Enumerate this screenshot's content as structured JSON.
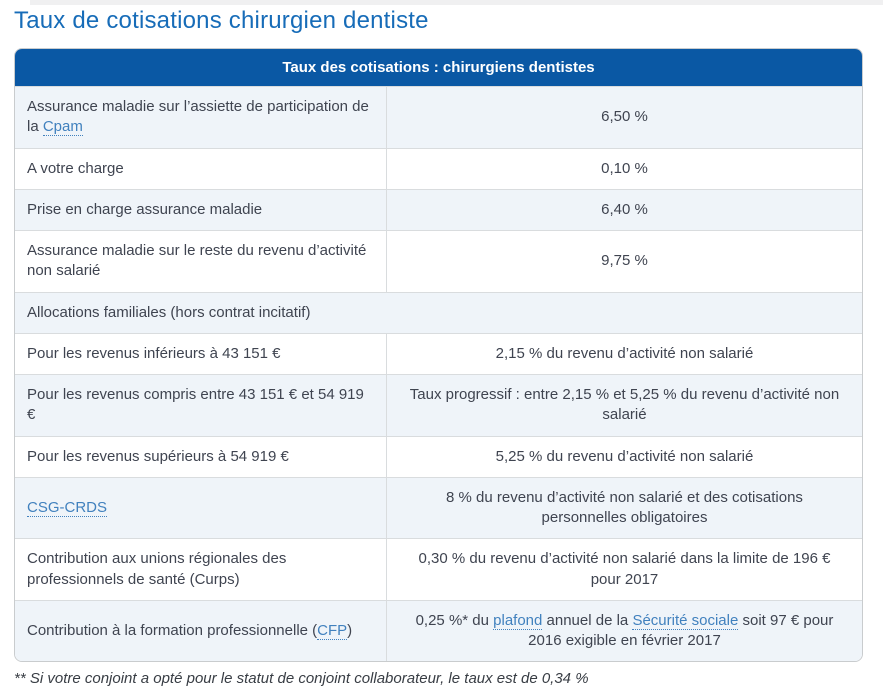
{
  "page": {
    "title": "Taux de cotisations chirurgien dentiste",
    "footnote": "** Si votre conjoint a opté pour le statut de conjoint collaborateur, le taux est de 0,34 %"
  },
  "colors": {
    "title_blue": "#176cb8",
    "header_bg": "#0a58a4",
    "link_blue": "#4181be",
    "row_alt_bg": "#eff4f9",
    "border": "#d9dcde",
    "text": "#3f4450"
  },
  "table": {
    "header": "Taux des cotisations : chirurgiens dentistes",
    "rows": [
      {
        "label": [
          {
            "t": "Assurance maladie sur l’assiette de participation de la "
          },
          {
            "t": "Cpam",
            "link": true
          }
        ],
        "value": [
          {
            "t": "6,50 %"
          }
        ]
      },
      {
        "label": [
          {
            "t": "A votre charge"
          }
        ],
        "value": [
          {
            "t": "0,10 %"
          }
        ]
      },
      {
        "label": [
          {
            "t": "Prise en charge assurance maladie"
          }
        ],
        "value": [
          {
            "t": "6,40 %"
          }
        ]
      },
      {
        "label": [
          {
            "t": "Assurance maladie sur le reste du revenu d’activité non salarié"
          }
        ],
        "value": [
          {
            "t": "9,75 %"
          }
        ]
      },
      {
        "label": [
          {
            "t": "Allocations familiales (hors contrat incitatif)"
          }
        ],
        "full_width": true
      },
      {
        "label": [
          {
            "t": "Pour les revenus inférieurs à 43 151 €"
          }
        ],
        "value": [
          {
            "t": "2,15 % du revenu d’activité non salarié"
          }
        ]
      },
      {
        "label": [
          {
            "t": "Pour les revenus compris entre 43 151 € et 54 919 €"
          }
        ],
        "value": [
          {
            "t": "Taux progressif : entre 2,15 % et 5,25 % du revenu d’activité non salarié"
          }
        ]
      },
      {
        "label": [
          {
            "t": "Pour les revenus supérieurs à 54 919 €"
          }
        ],
        "value": [
          {
            "t": "5,25 % du revenu d’activité non salarié"
          }
        ]
      },
      {
        "label": [
          {
            "t": "CSG-CRDS",
            "link": true
          }
        ],
        "value": [
          {
            "t": "8 % du revenu d’activité non salarié et des cotisations personnelles obligatoires"
          }
        ]
      },
      {
        "label": [
          {
            "t": "Contribution aux unions régionales des professionnels de santé (Curps)"
          }
        ],
        "value": [
          {
            "t": "0,30 % du revenu d’activité non salarié dans la limite de 196 € pour 2017"
          }
        ]
      },
      {
        "label": [
          {
            "t": "Contribution à la formation professionnelle ("
          },
          {
            "t": "CFP",
            "link": true
          },
          {
            "t": ")"
          }
        ],
        "value": [
          {
            "t": "0,25 %* du "
          },
          {
            "t": "plafond",
            "link": true
          },
          {
            "t": " annuel de la "
          },
          {
            "t": "Sécurité sociale",
            "link": true
          },
          {
            "t": " soit 97 € pour 2016 exigible en février 2017"
          }
        ]
      }
    ]
  }
}
